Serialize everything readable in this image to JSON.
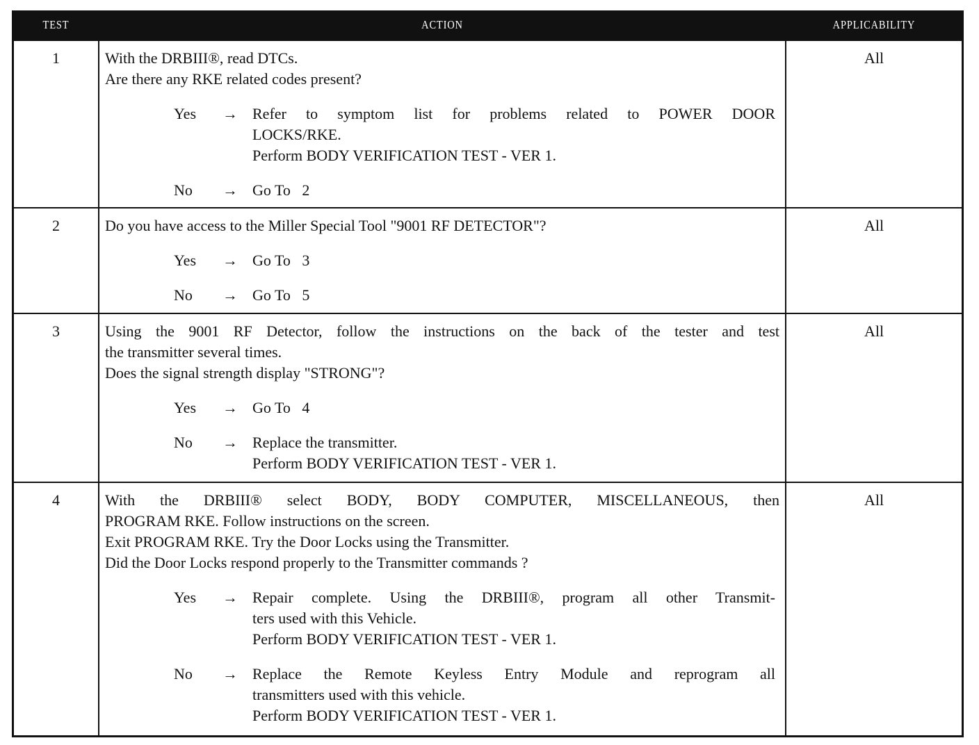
{
  "header": {
    "test": "TEST",
    "action": "ACTION",
    "applicability": "APPLICABILITY"
  },
  "rows": [
    {
      "test": "1",
      "applicability": "All",
      "intro": [
        [
          "With the DRBIII®, read DTCs."
        ],
        [
          "Are there any RKE related codes present?"
        ]
      ],
      "branches": [
        {
          "label": "Yes",
          "arrow": "→",
          "paras": [
            [
              "Refer to symptom list for problems related to POWER DOOR",
              "LOCKS/RKE."
            ],
            [
              "Perform BODY VERIFICATION TEST - VER 1."
            ]
          ]
        },
        {
          "label": "No",
          "arrow": "→",
          "paras": [
            [
              "Go To   2"
            ]
          ]
        }
      ]
    },
    {
      "test": "2",
      "applicability": "All",
      "intro": [
        [
          "Do you have access to the Miller Special Tool \"9001 RF DETECTOR\"?"
        ]
      ],
      "branches": [
        {
          "label": "Yes",
          "arrow": "→",
          "paras": [
            [
              "Go To   3"
            ]
          ]
        },
        {
          "label": "No",
          "arrow": "→",
          "paras": [
            [
              "Go To   5"
            ]
          ]
        }
      ]
    },
    {
      "test": "3",
      "applicability": "All",
      "intro": [
        [
          "Using the 9001 RF Detector, follow the instructions on the back of the tester and test",
          "the transmitter several times."
        ],
        [
          "Does the signal strength display \"STRONG\"?"
        ]
      ],
      "branches": [
        {
          "label": "Yes",
          "arrow": "→",
          "paras": [
            [
              "Go To   4"
            ]
          ]
        },
        {
          "label": "No",
          "arrow": "→",
          "paras": [
            [
              "Replace the transmitter."
            ],
            [
              "Perform BODY VERIFICATION TEST - VER 1."
            ]
          ]
        }
      ]
    },
    {
      "test": "4",
      "applicability": "All",
      "intro": [
        [
          "With the DRBIII® select BODY, BODY COMPUTER, MISCELLANEOUS, then",
          "PROGRAM RKE. Follow instructions on the screen."
        ],
        [
          "Exit PROGRAM RKE. Try the Door Locks using the Transmitter."
        ],
        [
          "Did the Door Locks respond properly to the Transmitter commands ?"
        ]
      ],
      "branches": [
        {
          "label": "Yes",
          "arrow": "→",
          "paras": [
            [
              "Repair complete. Using the DRBIII®, program all other Transmit-",
              "ters used with this Vehicle."
            ],
            [
              "Perform BODY VERIFICATION TEST - VER 1."
            ]
          ]
        },
        {
          "label": "No",
          "arrow": "→",
          "paras": [
            [
              "Replace the Remote Keyless Entry Module and reprogram all",
              "transmitters used with this vehicle."
            ],
            [
              "Perform BODY VERIFICATION TEST - VER 1."
            ]
          ]
        }
      ]
    }
  ]
}
